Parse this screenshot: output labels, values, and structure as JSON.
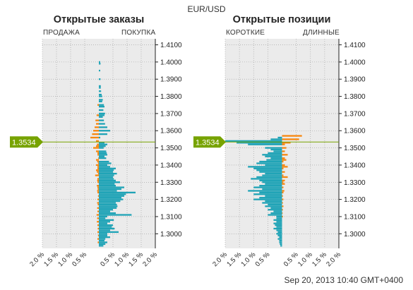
{
  "instrument": "EUR/USD",
  "timestamp": "Sep 20, 2013 10:40 GMT+0400",
  "colors": {
    "orange": "#f7870f",
    "teal": "#1fa3b6",
    "price_marker": "#77a300",
    "plot_bg": "#ebebeb",
    "grid": "#999999"
  },
  "orders_panel": {
    "title": "Открытые заказы",
    "left_label": "ПРОДАЖА",
    "right_label": "ПОКУПКА"
  },
  "positions_panel": {
    "title": "Открытые позиции",
    "left_label": "КОРОТКИЕ",
    "right_label": "ДЛИННЫЕ"
  },
  "current_price": "1.3534",
  "chart_data": [
    {
      "type": "bar",
      "orientation": "horizontal",
      "title": "Открытые заказы",
      "x_ticks": [
        "2.0 %",
        "1.5 %",
        "1.0 %",
        "0.5 %",
        "0.5 %",
        "1.0 %",
        "1.5 %",
        "2.0 %"
      ],
      "y_ticks": [
        "1.4100",
        "1.4000",
        "1.3900",
        "1.3800",
        "1.3700",
        "1.3600",
        "1.3500",
        "1.3400",
        "1.3300",
        "1.3200",
        "1.3100",
        "1.3000"
      ],
      "x_range": [
        -2.0,
        2.0
      ],
      "y_range": [
        1.2915,
        1.4135
      ],
      "current_price": 1.3534,
      "series": [
        {
          "name": "ПРОДАЖА",
          "color": "#f7870f",
          "points": [
            [
              1.375,
              0.05
            ],
            [
              1.369,
              0.08
            ],
            [
              1.366,
              0.12
            ],
            [
              1.364,
              0.1
            ],
            [
              1.362,
              0.15
            ],
            [
              1.36,
              0.2
            ],
            [
              1.358,
              0.24
            ],
            [
              1.356,
              0.3
            ],
            [
              1.354,
              0.1
            ],
            [
              1.352,
              0.07
            ],
            [
              1.351,
              0.1
            ],
            [
              1.35,
              0.2
            ],
            [
              1.348,
              0.1
            ],
            [
              1.347,
              0.05
            ],
            [
              1.346,
              0.05
            ],
            [
              1.344,
              0.02
            ],
            [
              1.343,
              0.1
            ],
            [
              1.342,
              0.06
            ],
            [
              1.341,
              0.03
            ],
            [
              1.34,
              0.1
            ],
            [
              1.339,
              0.05
            ],
            [
              1.338,
              0.05
            ],
            [
              1.337,
              0.1
            ],
            [
              1.336,
              0.07
            ],
            [
              1.335,
              0.03
            ],
            [
              1.334,
              0.13
            ],
            [
              1.332,
              0.05
            ],
            [
              1.331,
              0.06
            ],
            [
              1.33,
              0.05
            ],
            [
              1.328,
              0.07
            ],
            [
              1.327,
              0.05
            ],
            [
              1.326,
              0.04
            ],
            [
              1.325,
              0.06
            ],
            [
              1.324,
              0.05
            ],
            [
              1.322,
              0.03
            ],
            [
              1.32,
              0.05
            ],
            [
              1.318,
              0.06
            ],
            [
              1.317,
              0.04
            ],
            [
              1.315,
              0.06
            ],
            [
              1.313,
              0.05
            ],
            [
              1.311,
              0.08
            ],
            [
              1.309,
              0.06
            ],
            [
              1.307,
              0.07
            ],
            [
              1.305,
              0.05
            ],
            [
              1.303,
              0.04
            ],
            [
              1.301,
              0.05
            ],
            [
              1.299,
              0.03
            ],
            [
              1.297,
              0.05
            ],
            [
              1.295,
              0.04
            ]
          ]
        },
        {
          "name": "ПОКУПКА",
          "color": "#1fa3b6",
          "points": [
            [
              1.4,
              0.05
            ],
            [
              1.399,
              0.06
            ],
            [
              1.395,
              0.05
            ],
            [
              1.39,
              0.06
            ],
            [
              1.386,
              0.07
            ],
            [
              1.385,
              0.07
            ],
            [
              1.383,
              0.08
            ],
            [
              1.381,
              0.1
            ],
            [
              1.38,
              0.12
            ],
            [
              1.378,
              0.14
            ],
            [
              1.377,
              0.12
            ],
            [
              1.375,
              0.18
            ],
            [
              1.374,
              0.2
            ],
            [
              1.372,
              0.16
            ],
            [
              1.37,
              0.22
            ],
            [
              1.369,
              0.2
            ],
            [
              1.368,
              0.14
            ],
            [
              1.366,
              0.18
            ],
            [
              1.364,
              0.22
            ],
            [
              1.362,
              0.3
            ],
            [
              1.36,
              0.4
            ],
            [
              1.358,
              0.3
            ],
            [
              1.356,
              0.05
            ],
            [
              1.353,
              0.2
            ],
            [
              1.352,
              0.3
            ],
            [
              1.351,
              0.24
            ],
            [
              1.35,
              0.17
            ],
            [
              1.348,
              0.26
            ],
            [
              1.347,
              0.28
            ],
            [
              1.346,
              0.3
            ],
            [
              1.345,
              0.2
            ],
            [
              1.344,
              0.26
            ],
            [
              1.342,
              0.36
            ],
            [
              1.341,
              0.44
            ],
            [
              1.34,
              0.3
            ],
            [
              1.339,
              0.4
            ],
            [
              1.338,
              0.6
            ],
            [
              1.337,
              0.53
            ],
            [
              1.336,
              0.5
            ],
            [
              1.335,
              0.64
            ],
            [
              1.334,
              0.54
            ],
            [
              1.333,
              0.5
            ],
            [
              1.332,
              0.53
            ],
            [
              1.331,
              0.6
            ],
            [
              1.33,
              0.75
            ],
            [
              1.329,
              0.56
            ],
            [
              1.328,
              0.6
            ],
            [
              1.327,
              0.9
            ],
            [
              1.326,
              0.8
            ],
            [
              1.325,
              0.64
            ],
            [
              1.324,
              1.3
            ],
            [
              1.323,
              0.96
            ],
            [
              1.322,
              0.9
            ],
            [
              1.321,
              0.8
            ],
            [
              1.32,
              0.86
            ],
            [
              1.319,
              0.76
            ],
            [
              1.318,
              0.6
            ],
            [
              1.317,
              0.64
            ],
            [
              1.316,
              0.66
            ],
            [
              1.315,
              0.63
            ],
            [
              1.314,
              0.5
            ],
            [
              1.313,
              0.4
            ],
            [
              1.312,
              0.6
            ],
            [
              1.311,
              1.16
            ],
            [
              1.31,
              0.3
            ],
            [
              1.309,
              0.23
            ],
            [
              1.308,
              0.53
            ],
            [
              1.307,
              0.4
            ],
            [
              1.306,
              0.3
            ],
            [
              1.305,
              0.5
            ],
            [
              1.304,
              0.46
            ],
            [
              1.303,
              0.56
            ],
            [
              1.302,
              0.4
            ],
            [
              1.301,
              0.7
            ],
            [
              1.3,
              0.3
            ],
            [
              1.299,
              0.3
            ],
            [
              1.298,
              0.4
            ],
            [
              1.297,
              0.23
            ],
            [
              1.296,
              0.2
            ],
            [
              1.295,
              0.3
            ],
            [
              1.294,
              0.23
            ],
            [
              1.293,
              0.16
            ]
          ]
        }
      ]
    },
    {
      "type": "bar",
      "orientation": "horizontal",
      "title": "Открытые позиции",
      "x_ticks": [
        "2.0 %",
        "1.5 %",
        "1.0 %",
        "0.5 %",
        "0.5 %",
        "1.0 %",
        "1.5 %",
        "2.0 %"
      ],
      "y_ticks": [
        "1.4100",
        "1.4000",
        "1.3900",
        "1.3800",
        "1.3700",
        "1.3600",
        "1.3500",
        "1.3400",
        "1.3300",
        "1.3200",
        "1.3100",
        "1.3000"
      ],
      "x_range": [
        -2.0,
        2.0
      ],
      "y_range": [
        1.2915,
        1.4135
      ],
      "current_price": 1.3534,
      "series": [
        {
          "name": "КОРОТКИЕ",
          "color": "#1fa3b6",
          "points": [
            [
              1.356,
              0.15
            ],
            [
              1.355,
              0.4
            ],
            [
              1.354,
              2.0
            ],
            [
              1.353,
              1.6
            ],
            [
              1.352,
              1.2
            ],
            [
              1.35,
              0.6
            ],
            [
              1.349,
              0.4
            ],
            [
              1.348,
              0.3
            ],
            [
              1.347,
              0.5
            ],
            [
              1.346,
              0.7
            ],
            [
              1.345,
              0.6
            ],
            [
              1.344,
              0.4
            ],
            [
              1.343,
              0.55
            ],
            [
              1.342,
              0.8
            ],
            [
              1.341,
              0.9
            ],
            [
              1.34,
              0.6
            ],
            [
              1.339,
              1.2
            ],
            [
              1.338,
              1.0
            ],
            [
              1.337,
              0.9
            ],
            [
              1.336,
              0.8
            ],
            [
              1.335,
              0.6
            ],
            [
              1.334,
              0.7
            ],
            [
              1.333,
              0.9
            ],
            [
              1.332,
              1.1
            ],
            [
              1.331,
              0.8
            ],
            [
              1.33,
              0.7
            ],
            [
              1.329,
              0.6
            ],
            [
              1.328,
              0.8
            ],
            [
              1.327,
              1.0
            ],
            [
              1.326,
              0.7
            ],
            [
              1.325,
              1.2
            ],
            [
              1.324,
              0.8
            ],
            [
              1.323,
              1.0
            ],
            [
              1.322,
              0.6
            ],
            [
              1.321,
              0.8
            ],
            [
              1.32,
              1.0
            ],
            [
              1.319,
              0.6
            ],
            [
              1.318,
              0.7
            ],
            [
              1.317,
              0.5
            ],
            [
              1.316,
              0.6
            ],
            [
              1.315,
              0.4
            ],
            [
              1.314,
              0.5
            ],
            [
              1.313,
              0.3
            ],
            [
              1.312,
              0.4
            ],
            [
              1.311,
              0.5
            ],
            [
              1.31,
              0.2
            ],
            [
              1.309,
              0.2
            ],
            [
              1.308,
              0.3
            ],
            [
              1.307,
              0.2
            ],
            [
              1.306,
              0.3
            ],
            [
              1.305,
              0.25
            ],
            [
              1.304,
              0.2
            ],
            [
              1.303,
              0.3
            ],
            [
              1.302,
              0.2
            ],
            [
              1.301,
              0.15
            ],
            [
              1.3,
              0.2
            ],
            [
              1.299,
              0.15
            ],
            [
              1.298,
              0.1
            ],
            [
              1.297,
              0.15
            ],
            [
              1.296,
              0.1
            ],
            [
              1.295,
              0.1
            ],
            [
              1.294,
              0.08
            ],
            [
              1.293,
              0.06
            ]
          ]
        },
        {
          "name": "ДЛИННЫЕ",
          "color": "#f7870f",
          "points": [
            [
              1.357,
              0.7
            ],
            [
              1.355,
              0.6
            ],
            [
              1.353,
              0.3
            ],
            [
              1.352,
              0.1
            ],
            [
              1.35,
              0.15
            ],
            [
              1.348,
              0.1
            ],
            [
              1.346,
              0.2
            ],
            [
              1.344,
              0.1
            ],
            [
              1.343,
              0.15
            ],
            [
              1.342,
              0.05
            ],
            [
              1.34,
              0.1
            ],
            [
              1.339,
              0.2
            ],
            [
              1.338,
              0.05
            ],
            [
              1.336,
              0.1
            ],
            [
              1.334,
              0.05
            ],
            [
              1.333,
              0.2
            ],
            [
              1.331,
              0.1
            ],
            [
              1.33,
              0.05
            ],
            [
              1.329,
              0.1
            ],
            [
              1.327,
              0.05
            ],
            [
              1.325,
              0.08
            ],
            [
              1.324,
              0.05
            ],
            [
              1.322,
              0.03
            ],
            [
              1.32,
              0.05
            ],
            [
              1.318,
              0.03
            ],
            [
              1.316,
              0.05
            ],
            [
              1.314,
              0.03
            ],
            [
              1.312,
              0.02
            ],
            [
              1.31,
              0.03
            ]
          ]
        }
      ]
    }
  ]
}
